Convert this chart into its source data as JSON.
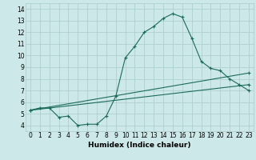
{
  "xlabel": "Humidex (Indice chaleur)",
  "background_color": "#cce8e8",
  "grid_color": "#aacccc",
  "line_color": "#1a6b5a",
  "xlim": [
    -0.5,
    23.5
  ],
  "ylim": [
    3.5,
    14.5
  ],
  "xticks": [
    0,
    1,
    2,
    3,
    4,
    5,
    6,
    7,
    8,
    9,
    10,
    11,
    12,
    13,
    14,
    15,
    16,
    17,
    18,
    19,
    20,
    21,
    22,
    23
  ],
  "yticks": [
    4,
    5,
    6,
    7,
    8,
    9,
    10,
    11,
    12,
    13,
    14
  ],
  "line1_x": [
    0,
    1,
    2,
    3,
    4,
    5,
    6,
    7,
    8,
    9,
    10,
    11,
    12,
    13,
    14,
    15,
    16,
    17,
    18,
    19,
    20,
    21,
    22,
    23
  ],
  "line1_y": [
    5.3,
    5.5,
    5.5,
    4.7,
    4.8,
    4.0,
    4.1,
    4.1,
    4.8,
    6.5,
    9.8,
    10.8,
    12.0,
    12.5,
    13.2,
    13.6,
    13.3,
    11.5,
    9.5,
    8.9,
    8.7,
    8.0,
    7.5,
    7.0
  ],
  "line2_x": [
    0,
    23
  ],
  "line2_y": [
    5.3,
    8.5
  ],
  "line3_x": [
    0,
    23
  ],
  "line3_y": [
    5.3,
    7.5
  ],
  "xlabel_fontsize": 6.5,
  "tick_fontsize": 5.5
}
